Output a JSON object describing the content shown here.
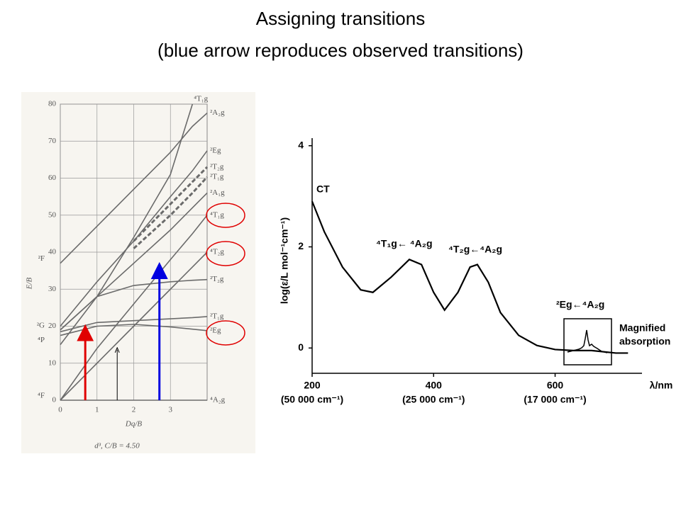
{
  "title": [
    "Assigning transitions",
    "(blue arrow reproduces  observed transitions)"
  ],
  "chart_data": [
    {
      "type": "line",
      "xlabel": "Dq/B",
      "ylabel": "E/B",
      "note": "d³, C/B = 4.50",
      "x": [
        0,
        1,
        2,
        3,
        3.6,
        4
      ],
      "xlim": [
        0,
        4
      ],
      "xticks": [
        0,
        1,
        2,
        3
      ],
      "ylim": [
        0,
        80
      ],
      "yticks": [
        0,
        10,
        20,
        30,
        40,
        50,
        60,
        70,
        80
      ],
      "grid": true,
      "series": [
        {
          "name": "⁴A₂g",
          "color": "#6b6b6b",
          "values": [
            0,
            0,
            0,
            0,
            0,
            0
          ]
        },
        {
          "name": "⁴T₂g",
          "color": "#6b6b6b",
          "values": [
            0,
            10,
            20,
            30,
            36,
            40
          ]
        },
        {
          "name": "⁴T₁g",
          "color": "#6b6b6b",
          "values": [
            0,
            14,
            26,
            38,
            45,
            50
          ]
        },
        {
          "name": "⁴T₁g",
          "color": "#6b6b6b",
          "values": [
            15,
            28,
            44,
            61,
            80,
            null
          ]
        },
        {
          "name": "²Eg",
          "color": "#6b6b6b",
          "values": [
            17.5,
            20,
            20.5,
            19.8,
            19.2,
            18.8
          ]
        },
        {
          "name": "²T₁g",
          "color": "#6b6b6b",
          "values": [
            18.5,
            21,
            21.5,
            22,
            22.3,
            22.6
          ]
        },
        {
          "name": "²T₂g",
          "color": "#6b6b6b",
          "values": [
            19,
            28,
            31,
            32,
            32.4,
            32.6
          ]
        },
        {
          "name": "²A₁g",
          "color": "#6b6b6b",
          "values": [
            19,
            28,
            37,
            46,
            52,
            56
          ]
        },
        {
          "name": "²A₂g",
          "color": "#6b6b6b",
          "values": [
            37,
            47,
            57,
            67,
            74,
            77.6
          ]
        },
        {
          "name": "²Eg",
          "color": "#6b6b6b",
          "values": [
            20,
            32,
            43,
            55,
            62,
            67.4
          ]
        },
        {
          "name": "²T₂g",
          "color": "#6b6b6b",
          "dash": true,
          "values": [
            null,
            null,
            43,
            53,
            59,
            63
          ]
        },
        {
          "name": "²T₁g",
          "color": "#6b6b6b",
          "dash": true,
          "values": [
            null,
            null,
            41,
            50,
            56,
            60.3
          ]
        }
      ],
      "left_labels": [
        {
          "text": "⁴F",
          "y": 0
        },
        {
          "text": "⁴P",
          "y": 15
        },
        {
          "text": "²G",
          "y": 19
        },
        {
          "text": "²F",
          "y": 37
        }
      ],
      "arrows": [
        {
          "x": 0.68,
          "y": [
            0,
            19
          ],
          "color": "#e00000"
        },
        {
          "x": 1.55,
          "y": [
            0,
            14.4
          ],
          "color": "#000000"
        },
        {
          "x": 2.7,
          "y": [
            0,
            35.8
          ],
          "color": "#0000e0"
        }
      ]
    },
    {
      "type": "line",
      "xlabel": "λ/nm",
      "ylabel": "log(ε/L mol⁻¹cm⁻¹)",
      "x": [
        200,
        220,
        250,
        280,
        300,
        330,
        360,
        380,
        400,
        418,
        440,
        460,
        472,
        490,
        510,
        540,
        570,
        600,
        630,
        660,
        700,
        720
      ],
      "xlim": [
        200,
        743
      ],
      "xticks": [
        200,
        400,
        600
      ],
      "xtick_sublabels": [
        "(50 000 cm⁻¹)",
        "(25 000 cm⁻¹)",
        "(17 000 cm⁻¹)"
      ],
      "ylim": [
        -0.5,
        4.15
      ],
      "yticks": [
        0,
        2,
        4
      ],
      "grid": false,
      "series": [
        {
          "color": "#000000",
          "values": [
            2.9,
            2.3,
            1.6,
            1.15,
            1.1,
            1.4,
            1.75,
            1.65,
            1.1,
            0.75,
            1.1,
            1.6,
            1.65,
            1.3,
            0.7,
            0.25,
            0.05,
            -0.03,
            -0.05,
            -0.05,
            -0.1,
            -0.1
          ]
        }
      ],
      "annotations": [
        "CT",
        "⁴T₁g← ⁴A₂g",
        "⁴T₂g←⁴A₂g",
        "²Eg←⁴A₂g"
      ],
      "inset_text": [
        "Magnified",
        "absorption"
      ]
    }
  ]
}
